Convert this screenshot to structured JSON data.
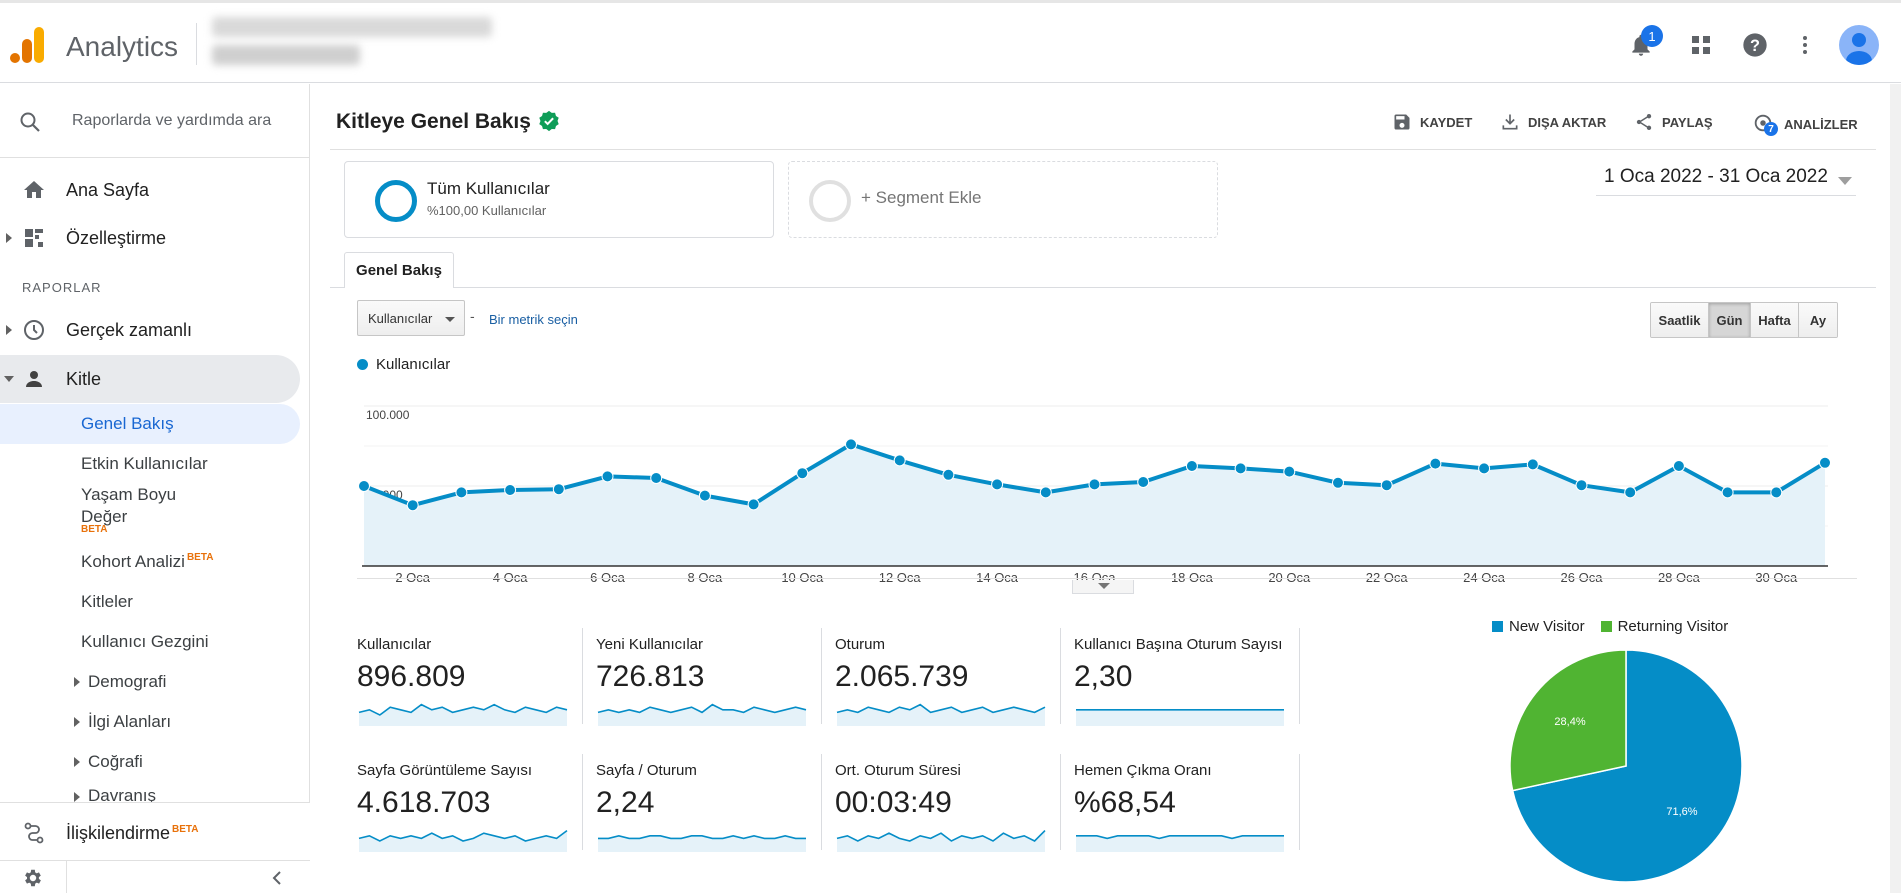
{
  "app": {
    "name": "Analytics",
    "notification_count": "1"
  },
  "sidebar": {
    "search_placeholder": "Raporlarda ve yardımda ara",
    "home": "Ana Sayfa",
    "customization": "Özelleştirme",
    "section_reports": "RAPORLAR",
    "realtime": "Gerçek zamanlı",
    "audience": "Kitle",
    "audience_items": [
      {
        "label": "Genel Bakış"
      },
      {
        "label": "Etkin Kullanıcılar"
      },
      {
        "label": "Yaşam Boyu Değer",
        "badge": "BETA"
      },
      {
        "label": "Kohort Analizi",
        "badge": "BETA"
      },
      {
        "label": "Kitleler"
      },
      {
        "label": "Kullanıcı Gezgini"
      },
      {
        "label": "Demografi"
      },
      {
        "label": "İlgi Alanları"
      },
      {
        "label": "Coğrafi"
      },
      {
        "label": "Davranış"
      }
    ],
    "attribution": "İlişkilendirme",
    "attribution_badge": "BETA"
  },
  "header": {
    "title": "Kitleye Genel Bakış",
    "actions": {
      "save": "KAYDET",
      "export": "DIŞA AKTAR",
      "share": "PAYLAŞ",
      "insights": "ANALİZLER",
      "insights_count": "7"
    }
  },
  "segments": {
    "active_name": "Tüm Kullanıcılar",
    "active_sub": "%100,00 Kullanıcılar",
    "add_label": "+ Segment Ekle"
  },
  "date_range": "1 Oca 2022 - 31 Oca 2022",
  "tab": "Genel Bakış",
  "controls": {
    "metric_select": "Kullanıcılar",
    "dash": "-",
    "compare_link": "Bir metrik seçin",
    "granularity": [
      "Saatlik",
      "Gün",
      "Hafta",
      "Ay"
    ],
    "granularity_selected": "Gün"
  },
  "colors": {
    "series": "#058dc7",
    "series_fill": "#e5f2f9",
    "returning": "#50b432",
    "accent": "#1a73e8"
  },
  "chart_data": {
    "type": "area",
    "legend": "Kullanıcılar",
    "x": [
      "1 Oca",
      "2 Oca",
      "3 Oca",
      "4 Oca",
      "5 Oca",
      "6 Oca",
      "7 Oca",
      "8 Oca",
      "9 Oca",
      "10 Oca",
      "11 Oca",
      "12 Oca",
      "13 Oca",
      "14 Oca",
      "15 Oca",
      "16 Oca",
      "17 Oca",
      "18 Oca",
      "19 Oca",
      "20 Oca",
      "21 Oca",
      "22 Oca",
      "23 Oca",
      "24 Oca",
      "25 Oca",
      "26 Oca",
      "27 Oca",
      "28 Oca",
      "29 Oca",
      "30 Oca",
      "31 Oca"
    ],
    "x_tick_labels": [
      "2 Oca",
      "4 Oca",
      "6 Oca",
      "8 Oca",
      "10 Oca",
      "12 Oca",
      "14 Oca",
      "16 Oca",
      "18 Oca",
      "20 Oca",
      "22 Oca",
      "24 Oca",
      "26 Oca",
      "28 Oca",
      "30 Oca"
    ],
    "values": [
      50000,
      38000,
      46000,
      47500,
      48000,
      56000,
      55000,
      44000,
      38500,
      58000,
      76000,
      66000,
      57000,
      51000,
      46000,
      51000,
      52500,
      62500,
      61000,
      59000,
      52000,
      50500,
      64000,
      61000,
      63500,
      50500,
      46000,
      62500,
      46000,
      46000,
      64500
    ],
    "y_ticks": [
      "100.000",
      "50.000"
    ],
    "ylim": [
      0,
      100000
    ],
    "grid": true
  },
  "metrics": [
    {
      "label": "Kullanıcılar",
      "value": "896.809",
      "spark": [
        4,
        5,
        3,
        6,
        5,
        4,
        7,
        5,
        6,
        4,
        5,
        6,
        5,
        7,
        5,
        4,
        6,
        5,
        4,
        6,
        5
      ]
    },
    {
      "label": "Yeni Kullanıcılar",
      "value": "726.813",
      "spark": [
        4,
        5,
        4,
        5,
        4,
        6,
        5,
        4,
        5,
        6,
        4,
        7,
        5,
        5,
        4,
        6,
        5,
        4,
        5,
        6,
        5
      ]
    },
    {
      "label": "Oturum",
      "value": "2.065.739",
      "spark": [
        4,
        5,
        4,
        6,
        5,
        4,
        6,
        5,
        7,
        4,
        5,
        6,
        4,
        5,
        6,
        4,
        5,
        6,
        5,
        4,
        6
      ]
    },
    {
      "label": "Kullanıcı Başına Oturum Sayısı",
      "value": "2,30",
      "spark": [
        5,
        5,
        5,
        5,
        5,
        5,
        5,
        5,
        5,
        5,
        5,
        5,
        5,
        5,
        5,
        5,
        5,
        5,
        5,
        5,
        5
      ]
    },
    {
      "label": "Sayfa Görüntüleme Sayısı",
      "value": "4.618.703",
      "spark": [
        4,
        5,
        3,
        5,
        4,
        5,
        4,
        6,
        4,
        5,
        3,
        4,
        6,
        5,
        4,
        5,
        3,
        4,
        5,
        4,
        7
      ]
    },
    {
      "label": "Sayfa / Oturum",
      "value": "2,24",
      "spark": [
        4,
        4,
        5,
        4,
        4,
        5,
        5,
        4,
        4,
        5,
        5,
        4,
        4,
        5,
        4,
        5,
        4,
        4,
        5,
        4,
        4
      ]
    },
    {
      "label": "Ort. Oturum Süresi",
      "value": "00:03:49",
      "spark": [
        4,
        5,
        3,
        5,
        4,
        6,
        4,
        3,
        5,
        4,
        6,
        3,
        5,
        4,
        5,
        3,
        6,
        4,
        5,
        3,
        7
      ]
    },
    {
      "label": "Hemen Çıkma Oranı",
      "value": "%68,54",
      "spark": [
        5,
        5,
        5,
        4,
        5,
        5,
        5,
        5,
        4,
        5,
        5,
        5,
        5,
        5,
        5,
        4,
        5,
        5,
        5,
        5,
        5
      ]
    }
  ],
  "pie": {
    "type": "pie",
    "series": [
      {
        "name": "New Visitor",
        "value": 71.6,
        "label": "71,6%"
      },
      {
        "name": "Returning Visitor",
        "value": 28.4,
        "label": "28,4%"
      }
    ]
  }
}
